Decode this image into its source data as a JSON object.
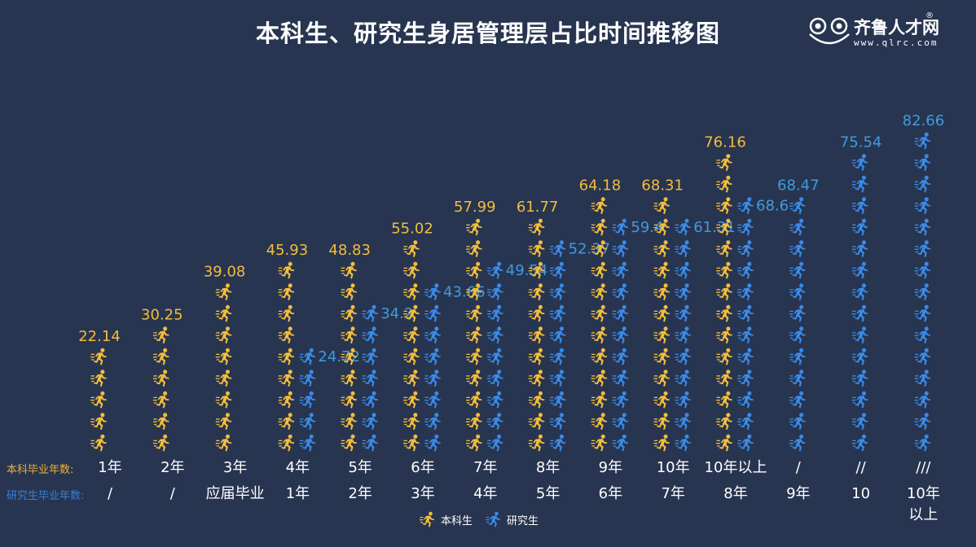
{
  "title": "本科生、研究生身居管理层占比时间推移图",
  "logo": {
    "name": "齐鲁人才网",
    "registered": "®",
    "url": "www.qlrc.com"
  },
  "chart_data": {
    "type": "pictorial-bar",
    "title": "本科生、研究生身居管理层占比时间推移图",
    "ylim": [
      -6,
      85
    ],
    "row_labels": {
      "undergrad": "本科毕业年数:",
      "grad": "研究生毕业年数:"
    },
    "categories_undergrad": [
      "1年",
      "2年",
      "3年",
      "4年",
      "5年",
      "6年",
      "7年",
      "8年",
      "9年",
      "10年",
      "10年以上",
      "/",
      "//",
      "///"
    ],
    "categories_grad": [
      "/",
      "/",
      "应届毕业",
      "1年",
      "2年",
      "3年",
      "4年",
      "5年",
      "6年",
      "7年",
      "8年",
      "9年",
      "10",
      "10年以上"
    ],
    "series": [
      {
        "name": "本科生",
        "color": "#f3bd3c",
        "values": [
          22.14,
          30.25,
          39.08,
          45.93,
          48.83,
          55.02,
          57.99,
          61.77,
          64.18,
          68.31,
          76.16,
          null,
          null,
          null
        ]
      },
      {
        "name": "研究生",
        "color": "#3a8be8",
        "label_color": "#3f9be0",
        "values": [
          null,
          null,
          null,
          24.72,
          34.2,
          43.66,
          49.54,
          52.37,
          59.4,
          61.31,
          68.6,
          68.47,
          75.54,
          82.66
        ]
      }
    ],
    "legend": {
      "position": "bottom-center",
      "items": [
        "本科生",
        "研究生"
      ]
    }
  }
}
